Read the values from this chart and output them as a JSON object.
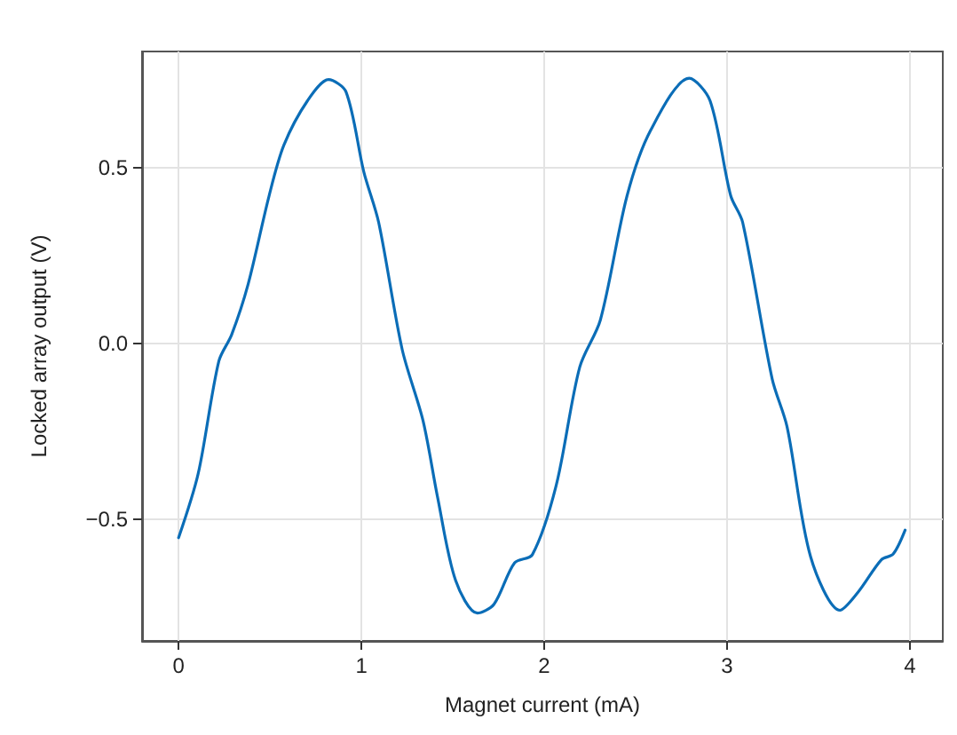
{
  "chart_data": {
    "type": "line",
    "xlabel": "Magnet current (mA)",
    "ylabel": "Locked array output (V)",
    "xlim": [
      -0.2,
      4.18
    ],
    "xticks": [
      0,
      1,
      2,
      3,
      4
    ],
    "ylim": [
      -0.845,
      0.83
    ],
    "yticks": [
      {
        "value": -0.5,
        "label": "−0.5"
      },
      {
        "value": 0,
        "label": "0.0"
      },
      {
        "value": 0.5,
        "label": "0.5"
      }
    ],
    "grid": true,
    "marker": "none",
    "line_style": "solid",
    "series": [
      {
        "color": "#0b6db7",
        "x": [
          0,
          0.107,
          0.22,
          0.29,
          0.38,
          0.495,
          0.576,
          0.705,
          0.82,
          0.916,
          1.013,
          1.094,
          1.223,
          1.337,
          1.417,
          1.515,
          1.634,
          1.725,
          1.838,
          1.935,
          2.065,
          2.194,
          2.307,
          2.453,
          2.582,
          2.793,
          2.907,
          3.02,
          3.085,
          3.247,
          3.328,
          3.457,
          3.618,
          3.716,
          3.845,
          3.909,
          3.974
        ],
        "values": [
          -0.552,
          -0.37,
          -0.05,
          0.025,
          0.168,
          0.42,
          0.564,
          0.69,
          0.75,
          0.715,
          0.488,
          0.345,
          -0.017,
          -0.219,
          -0.438,
          -0.673,
          -0.766,
          -0.741,
          -0.623,
          -0.6,
          -0.404,
          -0.067,
          0.067,
          0.42,
          0.606,
          0.754,
          0.69,
          0.42,
          0.345,
          -0.101,
          -0.236,
          -0.606,
          -0.758,
          -0.707,
          -0.614,
          -0.598,
          -0.53
        ]
      }
    ]
  }
}
